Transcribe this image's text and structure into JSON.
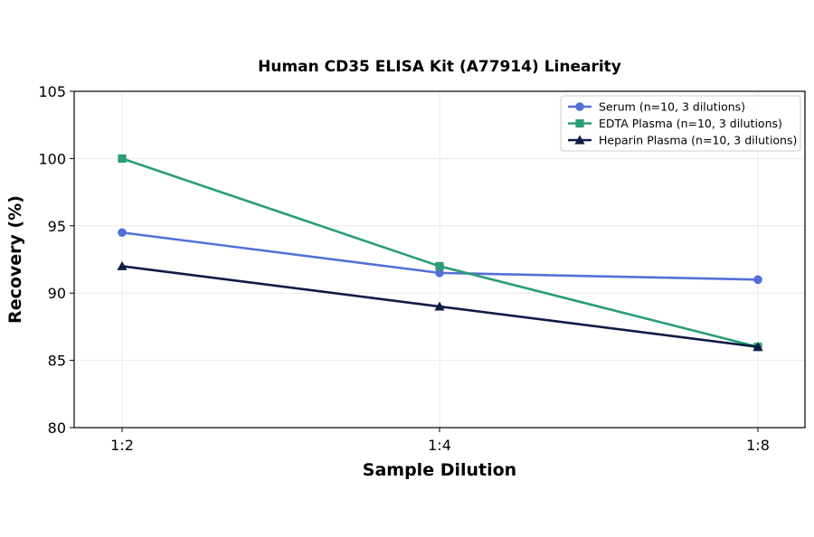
{
  "chart_data": {
    "type": "line",
    "title": "Human CD35 ELISA Kit (A77914) Linearity",
    "xlabel": "Sample Dilution",
    "ylabel": "Recovery (%)",
    "categories": [
      "1:2",
      "1:4",
      "1:8"
    ],
    "ylim": [
      80,
      105
    ],
    "yticks": [
      80,
      85,
      90,
      95,
      100,
      105
    ],
    "grid": true,
    "legend_position": "top-right",
    "series": [
      {
        "name": "Serum (n=10, 3 dilutions)",
        "values": [
          94.5,
          91.5,
          91.0
        ],
        "color": "#5470d6",
        "marker": "circle"
      },
      {
        "name": "EDTA Plasma (n=10, 3 dilutions)",
        "values": [
          100.0,
          92.0,
          86.0
        ],
        "color": "#2a9d74",
        "marker": "square"
      },
      {
        "name": "Heparin Plasma (n=10, 3 dilutions)",
        "values": [
          92.0,
          89.0,
          86.0
        ],
        "color": "#0f1c44",
        "marker": "triangle"
      }
    ]
  }
}
